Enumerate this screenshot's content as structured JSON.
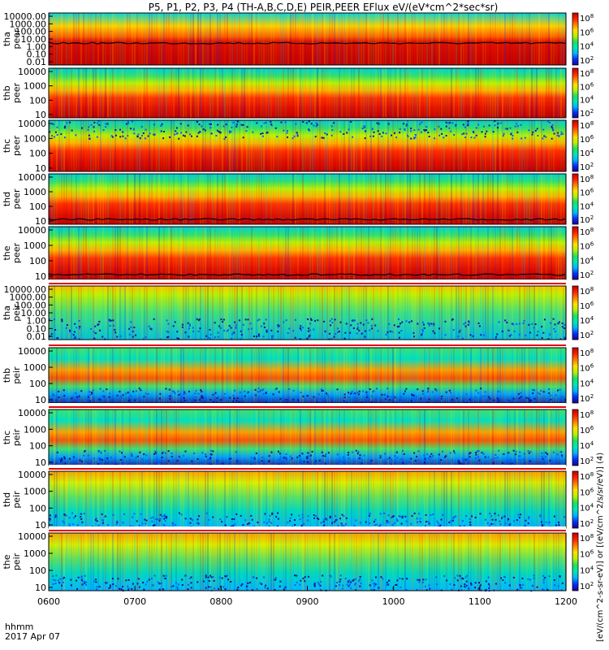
{
  "title": "P5, P1, P2, P3, P4 (TH-A,B,C,D,E) PEIR,PEER EFlux eV/(eV*cm^2*sec*sr)",
  "time_axis": {
    "ticks": [
      "0600",
      "0700",
      "0800",
      "0900",
      "1000",
      "1100",
      "1200"
    ],
    "corner_label": "hhmm",
    "date_label": "2017 Apr 07"
  },
  "colorbar": {
    "label": "[eV/(cm^2-s-sr-eV)] or [(eV/cm^2/s/sr/eV)] (4)",
    "tick_exp": [
      "2",
      "4",
      "6",
      "8"
    ],
    "palette": [
      "#20008c",
      "#0030ff",
      "#00b4ff",
      "#00e8b0",
      "#20e060",
      "#b8f000",
      "#ffe000",
      "#ff8000",
      "#ff2000",
      "#c00000"
    ]
  },
  "chart_data": [
    {
      "type": "heatmap",
      "probe": "tha",
      "species": "peer",
      "yticks": [
        "10000.00",
        "1000.00",
        "100.00",
        "10.00",
        "1.00",
        "0.10",
        "0.01"
      ],
      "ylim": [
        0.01,
        20000
      ],
      "log": true
    },
    {
      "type": "heatmap",
      "probe": "thb",
      "species": "peer",
      "yticks": [
        "10000",
        "1000",
        "100",
        "10"
      ],
      "ylim": [
        7,
        20000
      ],
      "log": true
    },
    {
      "type": "heatmap",
      "probe": "thc",
      "species": "peer",
      "yticks": [
        "10000",
        "1000",
        "100",
        "10"
      ],
      "ylim": [
        7,
        20000
      ],
      "log": true
    },
    {
      "type": "heatmap",
      "probe": "thd",
      "species": "peer",
      "yticks": [
        "10000",
        "1000",
        "100",
        "10"
      ],
      "ylim": [
        7,
        20000
      ],
      "log": true
    },
    {
      "type": "heatmap",
      "probe": "the",
      "species": "peer",
      "yticks": [
        "10000",
        "1000",
        "100",
        "10"
      ],
      "ylim": [
        7,
        20000
      ],
      "log": true
    },
    {
      "type": "heatmap",
      "probe": "tha",
      "species": "peir",
      "yticks": [
        "10000.00",
        "1000.00",
        "100.00",
        "10.00",
        "1.00",
        "0.10",
        "0.01"
      ],
      "ylim": [
        0.01,
        20000
      ],
      "log": true
    },
    {
      "type": "heatmap",
      "probe": "thb",
      "species": "peir",
      "yticks": [
        "10000",
        "1000",
        "100",
        "10"
      ],
      "ylim": [
        7,
        20000
      ],
      "log": true
    },
    {
      "type": "heatmap",
      "probe": "thc",
      "species": "peir",
      "yticks": [
        "10000",
        "1000",
        "100",
        "10"
      ],
      "ylim": [
        7,
        20000
      ],
      "log": true
    },
    {
      "type": "heatmap",
      "probe": "thd",
      "species": "peir",
      "yticks": [
        "10000",
        "1000",
        "100",
        "10"
      ],
      "ylim": [
        7,
        20000
      ],
      "log": true
    },
    {
      "type": "heatmap",
      "probe": "the",
      "species": "peir",
      "yticks": [
        "10000",
        "1000",
        "100",
        "10"
      ],
      "ylim": [
        7,
        20000
      ],
      "log": true
    }
  ]
}
